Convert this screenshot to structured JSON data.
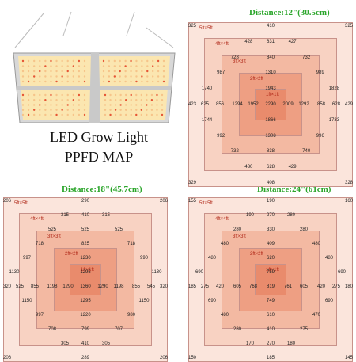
{
  "title": {
    "line1": "LED Grow Light",
    "line2": "PPFD MAP"
  },
  "colors": {
    "accent_green": "#2aa52a",
    "label_red": "#b02818",
    "sq5": "#fbe5dc",
    "sq4": "#f8d2c2",
    "sq3": "#f3b9a2",
    "sq2": "#ee9f83",
    "sq1": "#e98b6c"
  },
  "maps": [
    {
      "distance": "Distance:12\"(30.5cm)",
      "labels": [
        "5ft×5ft",
        "4ft×4ft",
        "3ft×3ft",
        "2ft×2ft",
        "1ft×1ft"
      ],
      "rows": [
        [
          "325",
          "410",
          "325"
        ],
        [
          "428",
          "631",
          "427"
        ],
        [
          "728",
          "840",
          "732"
        ],
        [
          "987",
          "1310",
          "989"
        ],
        [
          "1740",
          "1943",
          "1828"
        ],
        [
          "423",
          "625",
          "856",
          "1294",
          "1952",
          "2290",
          "2009",
          "1292",
          "858",
          "628",
          "429"
        ],
        [
          "1744",
          "1866",
          "1733"
        ],
        [
          "992",
          "1308",
          "996"
        ],
        [
          "732",
          "838",
          "740"
        ],
        [
          "430",
          "628",
          "429"
        ],
        [
          "329",
          "408",
          "328"
        ]
      ]
    },
    {
      "distance": "Distance:18\"(45.7cm)",
      "labels": [
        "5ft×5ft",
        "4ft×4ft",
        "3ft×3ft",
        "2ft×2ft",
        "1ft×1ft"
      ],
      "rows": [
        [
          "206",
          "290",
          "206"
        ],
        [
          "315",
          "410",
          "315"
        ],
        [
          "525",
          "525",
          "525"
        ],
        [
          "718",
          "825",
          "718"
        ],
        [
          "997",
          "1230",
          "990"
        ],
        [
          "1130",
          "1295",
          "1130"
        ],
        [
          "320",
          "525",
          "855",
          "1198",
          "1290",
          "1360",
          "1290",
          "1198",
          "855",
          "545",
          "320"
        ],
        [
          "1150",
          "1295",
          "1150"
        ],
        [
          "997",
          "1220",
          "980"
        ],
        [
          "708",
          "799",
          "707"
        ],
        [
          "305",
          "410",
          "305"
        ],
        [
          "206",
          "289",
          "206"
        ]
      ]
    },
    {
      "distance": "Distance:24\"(61cm)",
      "labels": [
        "5ft×5ft",
        "4ft×4ft",
        "3ft×3ft",
        "2ft×2ft",
        "1ft×1ft"
      ],
      "rows": [
        [
          "155",
          "190",
          "160"
        ],
        [
          "190",
          "270",
          "280"
        ],
        [
          "280",
          "330",
          "280"
        ],
        [
          "480",
          "409",
          "480"
        ],
        [
          "480",
          "620",
          "480"
        ],
        [
          "690",
          "759",
          "690"
        ],
        [
          "185",
          "275",
          "420",
          "605",
          "768",
          "819",
          "761",
          "605",
          "420",
          "275",
          "180"
        ],
        [
          "690",
          "749",
          "690"
        ],
        [
          "480",
          "610",
          "470"
        ],
        [
          "280",
          "410",
          "275"
        ],
        [
          "170",
          "270",
          "180"
        ],
        [
          "150",
          "185",
          "145"
        ]
      ]
    }
  ]
}
